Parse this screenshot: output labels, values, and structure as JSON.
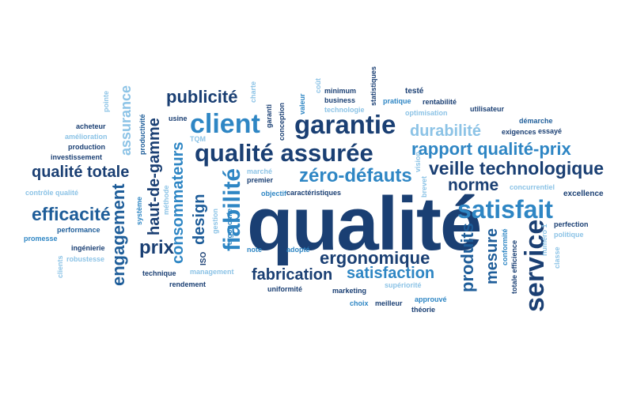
{
  "words": {
    "qualite": "qualité",
    "garantie": "garantie",
    "client": "client",
    "qualite_assuree": "qualité assurée",
    "publicite": "publicité",
    "satisfait": "satisfait",
    "service": "service",
    "fiabilite": "fiabilité",
    "veille_technologique": "veille technologique",
    "rapport_qualite_prix": "rapport qualité-prix",
    "durabilite": "durabilité",
    "zero_defauts": "zéro-défauts",
    "norme": "norme",
    "efficacite": "efficacité",
    "qualite_totale": "qualité totale",
    "ergonomique": "ergonomique",
    "fabrication": "fabrication",
    "satisfaction": "satisfaction",
    "prix": "prix",
    "produits": "produits",
    "mesure": "mesure",
    "haut_de_gamme": "haut-de-gamme",
    "engagement": "engagement",
    "assurance": "assurance",
    "consommateurs": "consommateurs",
    "design": "design",
    "iso": "ISO",
    "tqm": "TQM",
    "marche": "marché",
    "premier": "premier",
    "objectif": "objectif",
    "caracteristiques": "caractéristiques",
    "vision": "vision",
    "brevet": "brevet",
    "concurrentiel": "concurrentiel",
    "excellence": "excellence",
    "perfection": "perfection",
    "politique": "politique",
    "demarche": "démarche",
    "exigences": "exigences",
    "essaye": "essayé",
    "utilisateur": "utilisateur",
    "optimisation": "optimisation",
    "rentabilite": "rentabilité",
    "teste": "testé",
    "pratique": "pratique",
    "statistiques": "statistiques",
    "minimum": "minimum",
    "business": "business",
    "technologie": "technologie",
    "valeur": "valeur",
    "cout": "coût",
    "conception": "conception",
    "garanti": "garanti",
    "charte": "charte",
    "usine": "usine",
    "acheteur": "acheteur",
    "amelioration": "amélioration",
    "production": "production",
    "investissement": "investissement",
    "pointe": "pointe",
    "productivite": "productivité",
    "controle_qualite": "contrôle qualité",
    "systeme": "système",
    "methode": "méthode",
    "performance": "performance",
    "promesse": "promesse",
    "ingenierie": "ingénierie",
    "robustesse": "robustesse",
    "clients": "clients",
    "technique": "technique",
    "management": "management",
    "rendement": "rendement",
    "gestion": "gestion",
    "ergonomie": "ergonomie",
    "note": "note",
    "adopte": "adopté",
    "uniformite": "uniformité",
    "marketing": "marketing",
    "superiorite": "supériorité",
    "choix": "choix",
    "meilleur": "meilleur",
    "approuve": "approuvé",
    "theorie": "théorie",
    "conformite": "conformité",
    "totale_efficience": "totale efficience",
    "numero_1": "numéro 1",
    "classe": "classe"
  }
}
